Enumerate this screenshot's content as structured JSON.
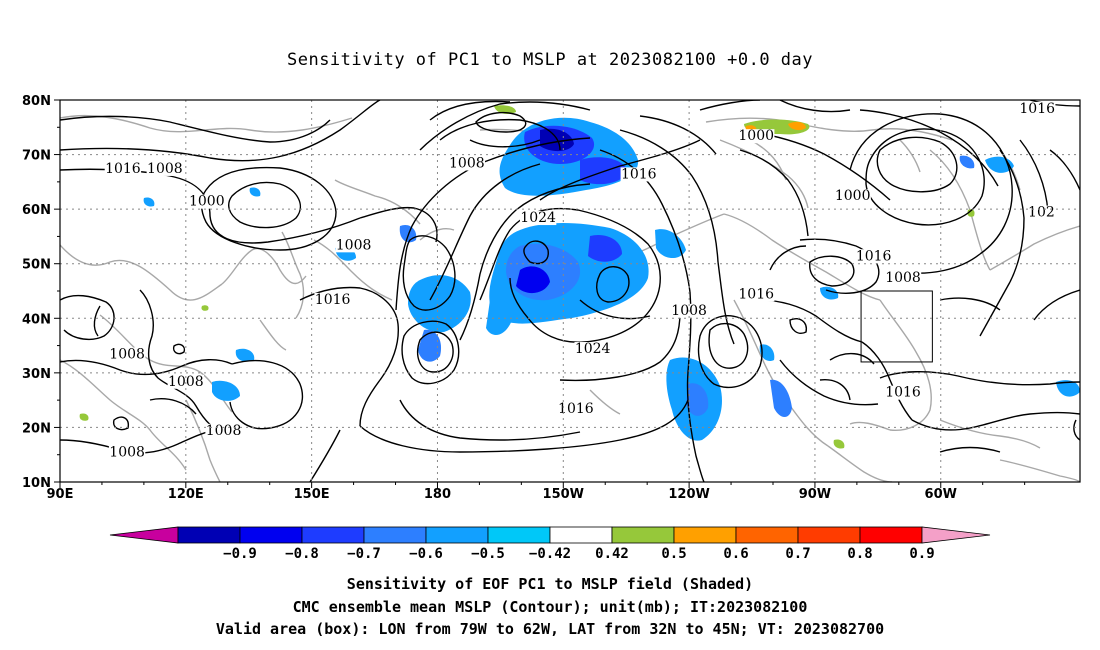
{
  "title": "Sensitivity of PC1 to MSLP at 2023082100 +0.0 day",
  "map": {
    "lat_ticks": [
      "80N",
      "70N",
      "60N",
      "50N",
      "40N",
      "30N",
      "20N",
      "10N"
    ],
    "lon_ticks": [
      "90E",
      "120E",
      "150E",
      "180",
      "150W",
      "120W",
      "90W",
      "60W"
    ],
    "valid_box": {
      "lon_from": "79W",
      "lon_to": "62W",
      "lat_from": "32N",
      "lat_to": "45N"
    },
    "contour_labels": [
      {
        "text": "1016",
        "lon": 105,
        "lat": 67
      },
      {
        "text": "1008",
        "lon": 115,
        "lat": 67
      },
      {
        "text": "1000",
        "lon": 125,
        "lat": 61
      },
      {
        "text": "1008",
        "lon": 160,
        "lat": 53
      },
      {
        "text": "1016",
        "lon": 155,
        "lat": 43
      },
      {
        "text": "1008",
        "lon": 106,
        "lat": 33
      },
      {
        "text": "1008",
        "lon": 120,
        "lat": 28
      },
      {
        "text": "1008",
        "lon": 129,
        "lat": 19
      },
      {
        "text": "1008",
        "lon": 106,
        "lat": 15
      },
      {
        "text": "1008",
        "lon": 187,
        "lat": 68
      },
      {
        "text": "1016",
        "lon": 228,
        "lat": 66
      },
      {
        "text": "1024",
        "lon": 204,
        "lat": 58
      },
      {
        "text": "1024",
        "lon": 217,
        "lat": 34
      },
      {
        "text": "1016",
        "lon": 213,
        "lat": 23
      },
      {
        "text": "1008",
        "lon": 240,
        "lat": 41
      },
      {
        "text": "1016",
        "lon": 256,
        "lat": 44
      },
      {
        "text": "1000",
        "lon": 256,
        "lat": 73
      },
      {
        "text": "1000",
        "lon": 279,
        "lat": 62
      },
      {
        "text": "1016",
        "lon": 284,
        "lat": 51
      },
      {
        "text": "1008",
        "lon": 291,
        "lat": 47
      },
      {
        "text": "1016",
        "lon": 291,
        "lat": 26
      },
      {
        "text": "102",
        "lon": 324,
        "lat": 59
      },
      {
        "text": "1016",
        "lon": 323,
        "lat": 78
      }
    ]
  },
  "colorbar": {
    "labels": [
      "-0.9",
      "-0.8",
      "-0.7",
      "-0.6",
      "-0.5",
      "-0.42",
      "0.42",
      "0.5",
      "0.6",
      "0.7",
      "0.8",
      "0.9"
    ],
    "colors": [
      "#c8009e",
      "#0000b4",
      "#0000f0",
      "#1e3cff",
      "#2d7fff",
      "#12a0ff",
      "#00c8f8",
      "#ffffff",
      "#96c83a",
      "#ffa000",
      "#ff6400",
      "#ff3c00",
      "#ff0000",
      "#f4a0c8"
    ]
  },
  "notes": [
    "Sensitivity of EOF PC1 to MSLP field (Shaded)",
    "CMC ensemble mean MSLP (Contour); unit(mb); IT:2023082100",
    "Valid area (box): LON from 79W to 62W, LAT from 32N to 45N; VT: 2023082700"
  ]
}
